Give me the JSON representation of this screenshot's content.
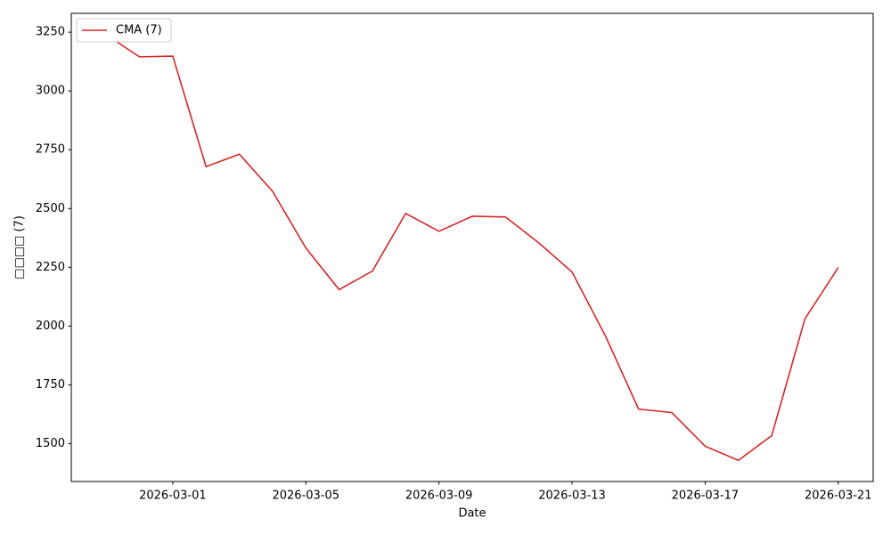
{
  "chart_data": {
    "type": "line",
    "x": [
      "2026-02-27",
      "2026-02-28",
      "2026-03-01",
      "2026-03-02",
      "2026-03-03",
      "2026-03-04",
      "2026-03-05",
      "2026-03-06",
      "2026-03-07",
      "2026-03-08",
      "2026-03-09",
      "2026-03-10",
      "2026-03-11",
      "2026-03-12",
      "2026-03-13",
      "2026-03-14",
      "2026-03-15",
      "2026-03-16",
      "2026-03-17",
      "2026-03-18",
      "2026-03-19",
      "2026-03-20",
      "2026-03-21"
    ],
    "series": [
      {
        "name": "CMA (7)",
        "color": "#d62728",
        "values": [
          3239,
          3145,
          3148,
          2678,
          2731,
          2573,
          2332,
          2155,
          2234,
          2479,
          2403,
          2467,
          2464,
          2354,
          2230,
          1959,
          1647,
          1632,
          1489,
          1429,
          1534,
          2031,
          2249
        ]
      }
    ],
    "xlabel": "Date",
    "ylabel": "□□□□ (7)",
    "xlim": [
      "2026-02-25T22:48",
      "2026-03-22T01:12"
    ],
    "xticks": [
      "2026-03-01",
      "2026-03-05",
      "2026-03-09",
      "2026-03-13",
      "2026-03-17",
      "2026-03-21"
    ],
    "ylim": [
      1339,
      3330
    ],
    "yticks": [
      1500,
      1750,
      2000,
      2250,
      2500,
      2750,
      3000,
      3250
    ],
    "legend": "upper left"
  }
}
